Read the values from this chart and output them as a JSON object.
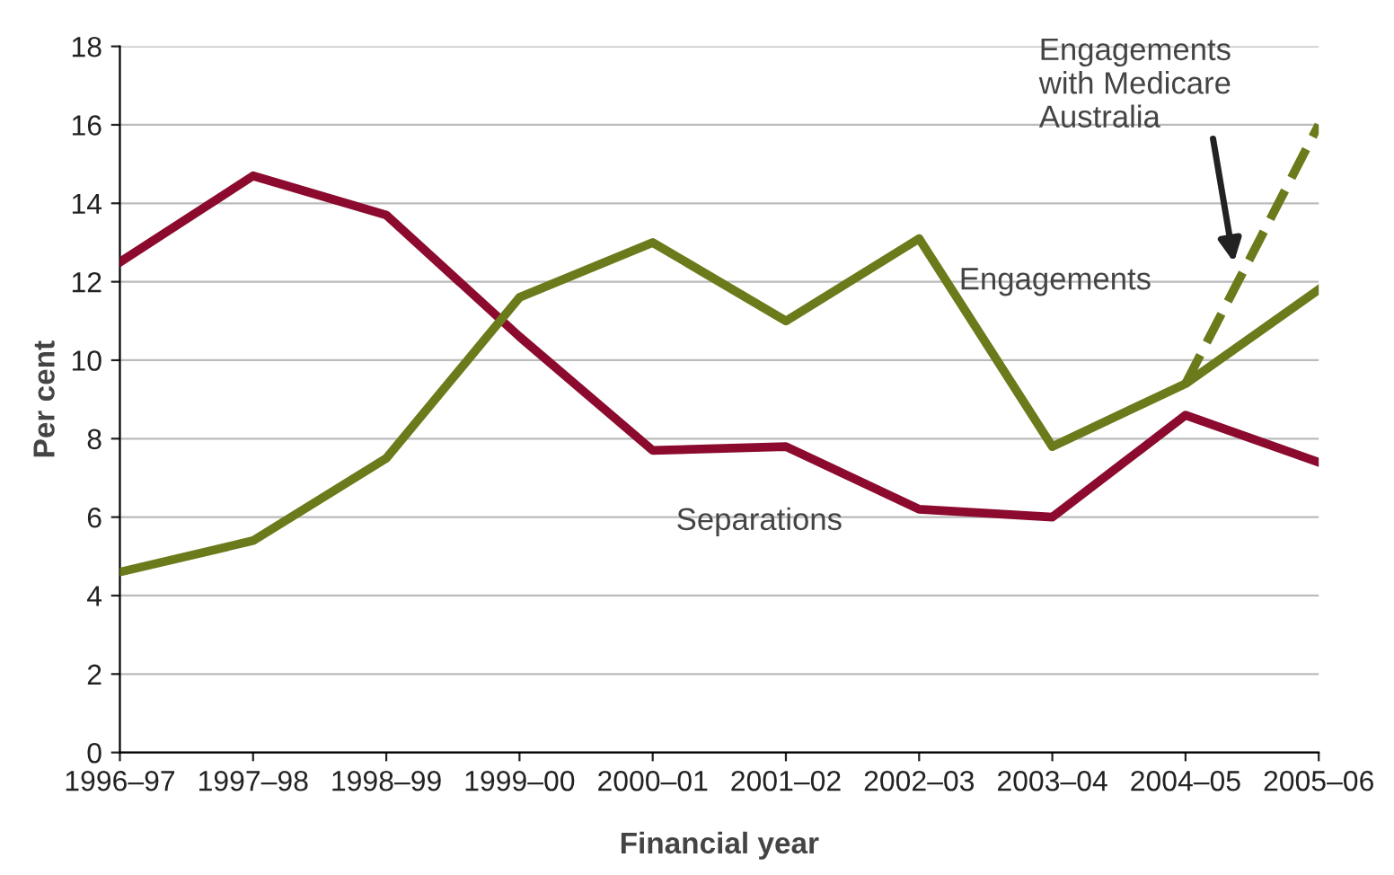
{
  "chart_data": {
    "type": "line",
    "xlabel": "Financial year",
    "ylabel": "Per cent",
    "categories": [
      "1996–97",
      "1997–98",
      "1998–99",
      "1999–00",
      "2000–01",
      "2001–02",
      "2002–03",
      "2003–04",
      "2004–05",
      "2005–06"
    ],
    "series": [
      {
        "name": "Separations",
        "color": "#8b0a2e",
        "values": [
          12.5,
          14.7,
          13.7,
          10.6,
          7.7,
          7.8,
          6.2,
          6.0,
          8.6,
          7.4
        ]
      },
      {
        "name": "Engagements",
        "color": "#6b7a1a",
        "values": [
          4.6,
          5.4,
          7.5,
          11.6,
          13.0,
          11.0,
          13.1,
          7.8,
          9.4,
          11.8
        ]
      },
      {
        "color": "#6b7a1a",
        "line_style": "dashed",
        "values": [
          null,
          null,
          null,
          null,
          null,
          null,
          null,
          null,
          9.4,
          16.0
        ]
      }
    ],
    "annotations": [
      "Engagements\nwith Medicare\nAustralia"
    ],
    "ylim": [
      0,
      18
    ],
    "yticks": [
      0,
      2,
      4,
      6,
      8,
      10,
      12,
      14,
      16,
      18
    ],
    "grid": "y",
    "legend": false,
    "line_style": "solid",
    "marker": "none"
  }
}
